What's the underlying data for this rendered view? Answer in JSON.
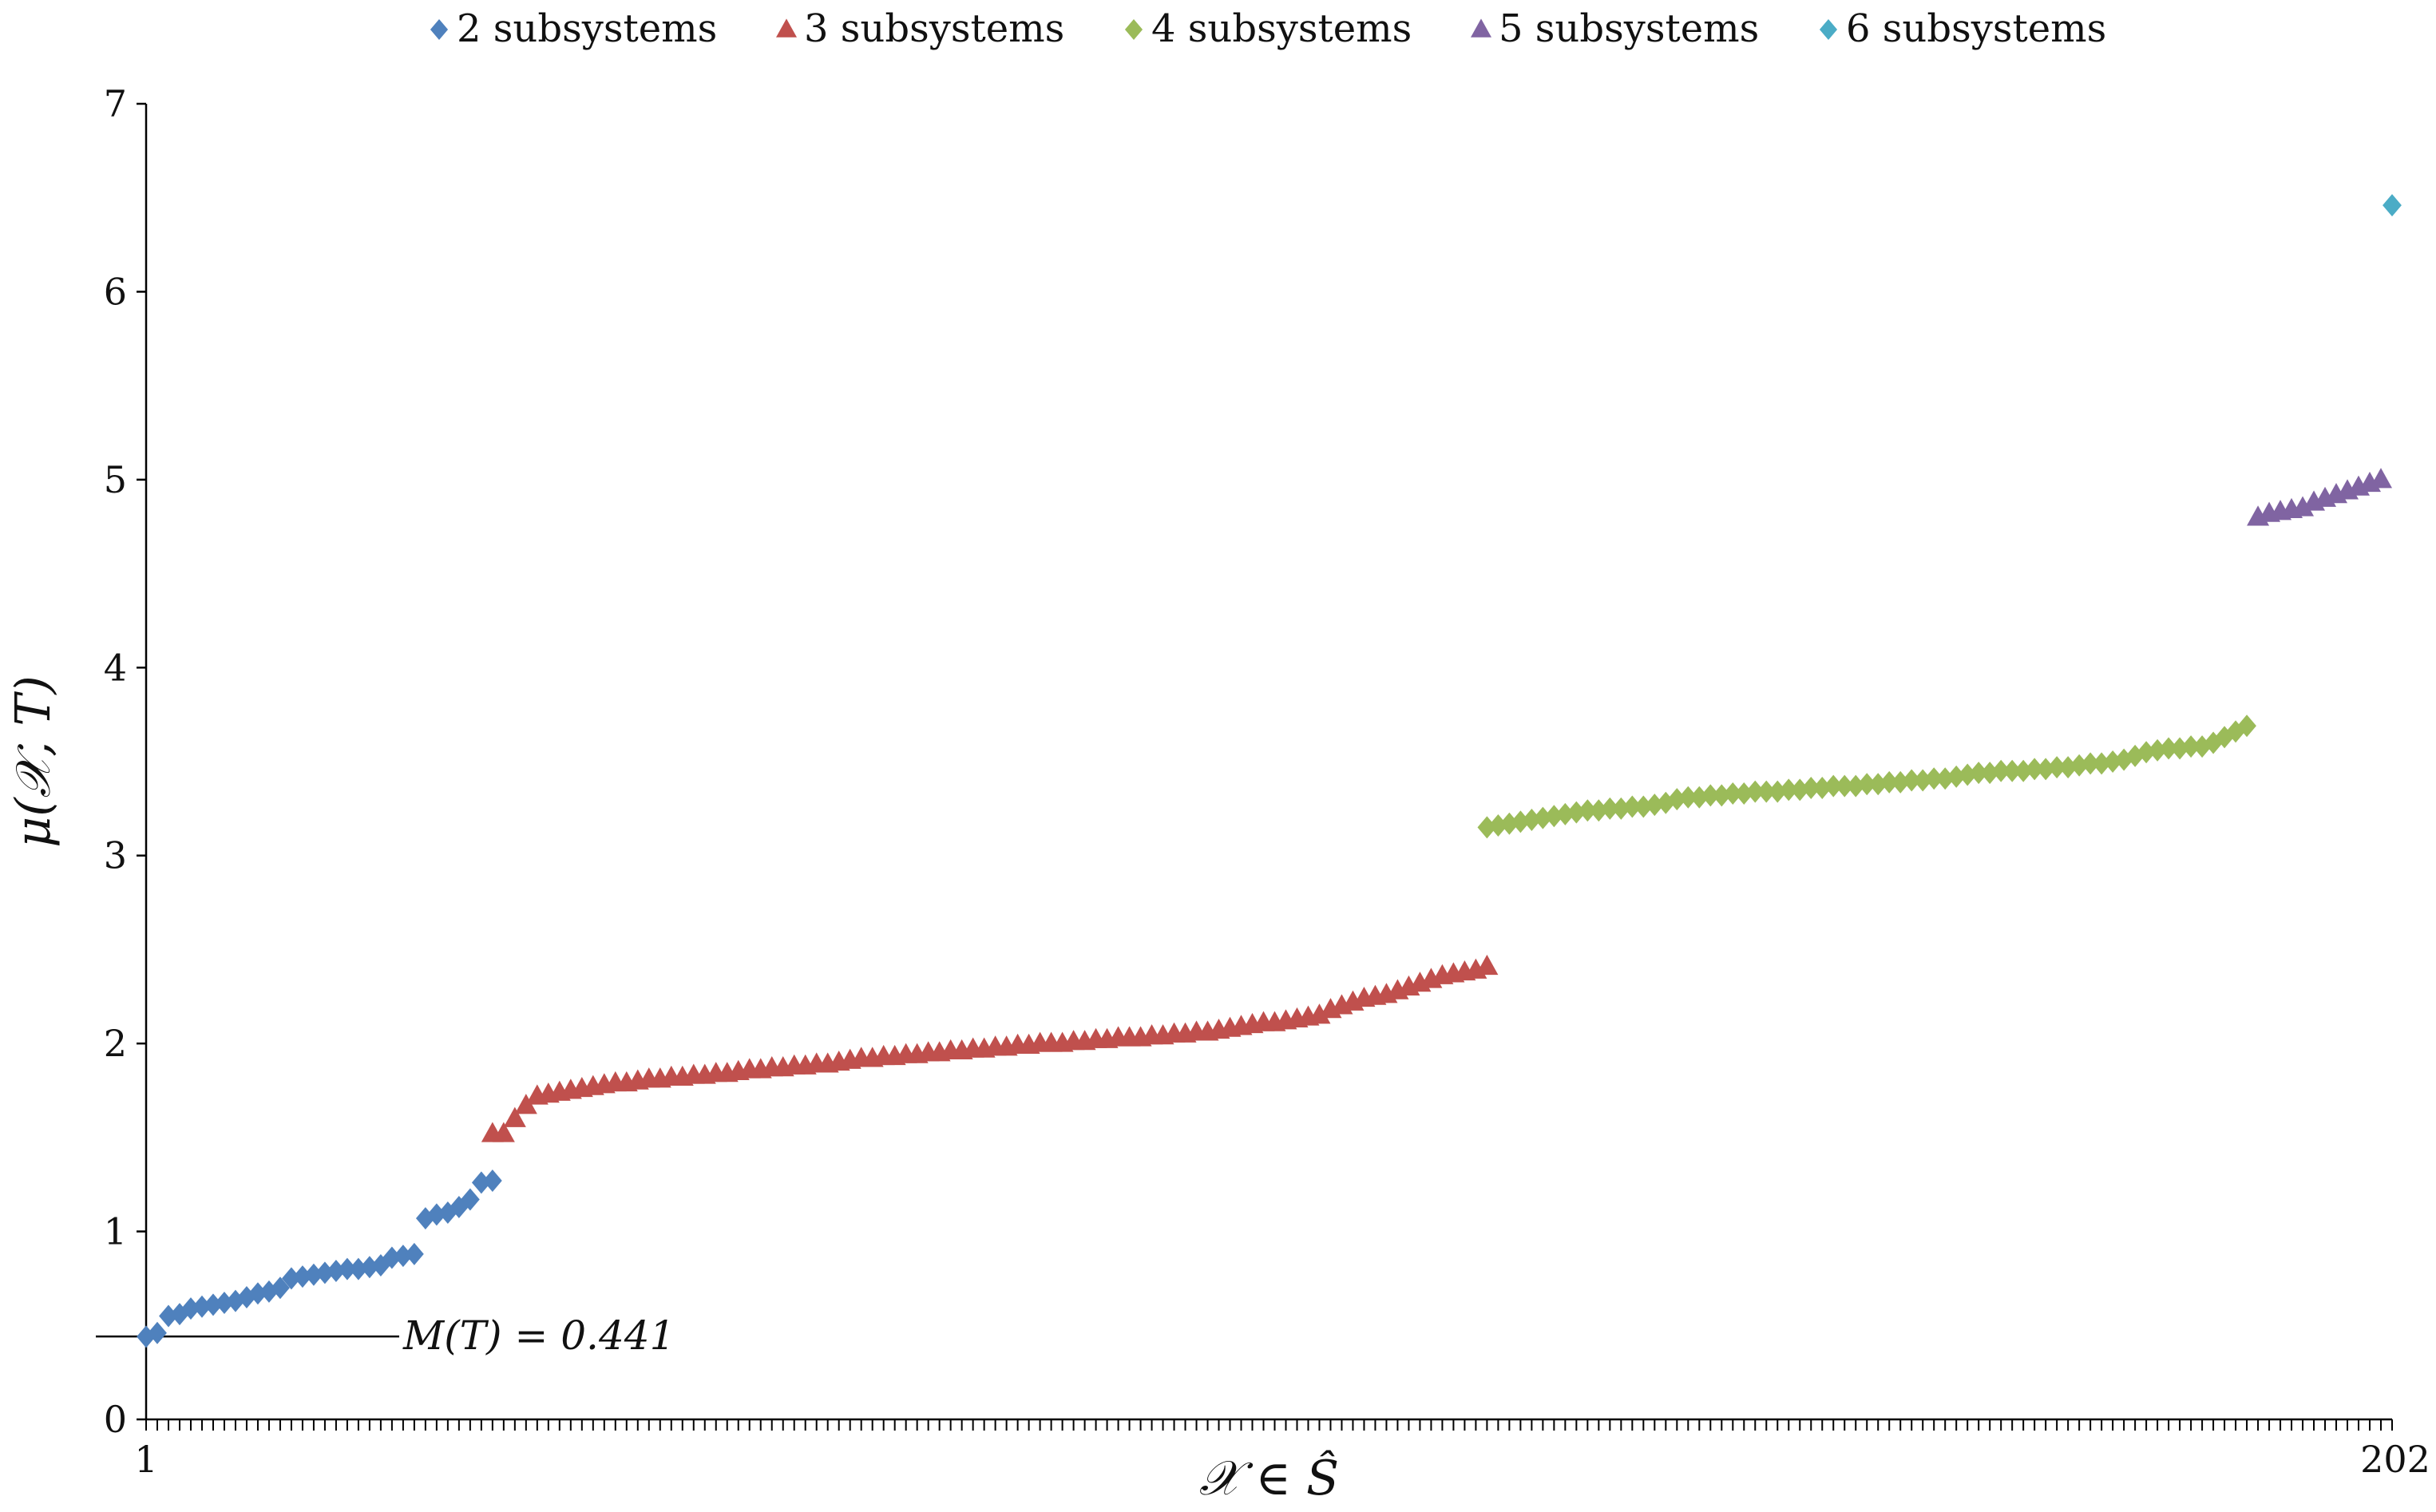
{
  "chart_data": {
    "type": "scatter",
    "xlabel": "𝒳 ∈ Ŝ",
    "ylabel": "μ(𝒳, T)",
    "xlim": [
      1,
      202
    ],
    "ylim": [
      0,
      7
    ],
    "x_tick_labels": [
      "1",
      "202"
    ],
    "y_ticks": [
      "0",
      "1",
      "2",
      "3",
      "4",
      "5",
      "6",
      "7"
    ],
    "grid": false,
    "legend_position": "top",
    "annotation": {
      "label": "M(T) = 0.441",
      "y": 0.441
    },
    "series": [
      {
        "name": "2 subsystems",
        "color": "#4f81bd",
        "marker": "diamond",
        "x": [
          1,
          2,
          3,
          4,
          5,
          6,
          7,
          8,
          9,
          10,
          11,
          12,
          13,
          14,
          15,
          16,
          17,
          18,
          19,
          20,
          21,
          22,
          23,
          24,
          25,
          26,
          27,
          28,
          29,
          30,
          31,
          32
        ],
        "y": [
          0.44,
          0.46,
          0.55,
          0.56,
          0.59,
          0.6,
          0.61,
          0.62,
          0.63,
          0.65,
          0.67,
          0.68,
          0.7,
          0.75,
          0.76,
          0.77,
          0.78,
          0.79,
          0.8,
          0.8,
          0.81,
          0.82,
          0.86,
          0.87,
          0.88,
          1.07,
          1.09,
          1.1,
          1.13,
          1.17,
          1.26,
          1.27
        ]
      },
      {
        "name": "3 subsystems",
        "color": "#c0504d",
        "marker": "triangle",
        "x": [
          32,
          33,
          34,
          35,
          36,
          37,
          38,
          39,
          40,
          41,
          42,
          43,
          44,
          45,
          46,
          47,
          48,
          49,
          50,
          51,
          52,
          53,
          54,
          55,
          56,
          57,
          58,
          59,
          60,
          61,
          62,
          63,
          64,
          65,
          66,
          67,
          68,
          69,
          70,
          71,
          72,
          73,
          74,
          75,
          76,
          77,
          78,
          79,
          80,
          81,
          82,
          83,
          84,
          85,
          86,
          87,
          88,
          89,
          90,
          91,
          92,
          93,
          94,
          95,
          96,
          97,
          98,
          99,
          100,
          101,
          102,
          103,
          104,
          105,
          106,
          107,
          108,
          109,
          110,
          111,
          112,
          113,
          114,
          115,
          116,
          117,
          118,
          119,
          120,
          121
        ],
        "y": [
          1.52,
          1.52,
          1.6,
          1.67,
          1.72,
          1.73,
          1.74,
          1.75,
          1.76,
          1.77,
          1.78,
          1.79,
          1.79,
          1.8,
          1.81,
          1.81,
          1.82,
          1.82,
          1.83,
          1.83,
          1.84,
          1.84,
          1.85,
          1.86,
          1.86,
          1.87,
          1.87,
          1.88,
          1.88,
          1.89,
          1.89,
          1.9,
          1.91,
          1.92,
          1.92,
          1.93,
          1.93,
          1.94,
          1.94,
          1.95,
          1.95,
          1.96,
          1.96,
          1.97,
          1.97,
          1.98,
          1.98,
          1.99,
          1.99,
          2.0,
          2.0,
          2.0,
          2.01,
          2.01,
          2.02,
          2.02,
          2.03,
          2.03,
          2.03,
          2.04,
          2.04,
          2.05,
          2.05,
          2.06,
          2.06,
          2.07,
          2.08,
          2.09,
          2.1,
          2.11,
          2.11,
          2.12,
          2.13,
          2.14,
          2.15,
          2.18,
          2.2,
          2.22,
          2.24,
          2.25,
          2.26,
          2.28,
          2.3,
          2.32,
          2.34,
          2.36,
          2.37,
          2.38,
          2.39,
          2.41
        ]
      },
      {
        "name": "4 subsystems",
        "color": "#9bbb59",
        "marker": "diamond",
        "x": [
          121,
          122,
          123,
          124,
          125,
          126,
          127,
          128,
          129,
          130,
          131,
          132,
          133,
          134,
          135,
          136,
          137,
          138,
          139,
          140,
          141,
          142,
          143,
          144,
          145,
          146,
          147,
          148,
          149,
          150,
          151,
          152,
          153,
          154,
          155,
          156,
          157,
          158,
          159,
          160,
          161,
          162,
          163,
          164,
          165,
          166,
          167,
          168,
          169,
          170,
          171,
          172,
          173,
          174,
          175,
          176,
          177,
          178,
          179,
          180,
          181,
          182,
          183,
          184,
          185,
          186,
          187,
          188,
          189
        ],
        "y": [
          3.15,
          3.16,
          3.17,
          3.18,
          3.19,
          3.2,
          3.21,
          3.22,
          3.23,
          3.24,
          3.24,
          3.25,
          3.25,
          3.26,
          3.26,
          3.27,
          3.28,
          3.3,
          3.31,
          3.31,
          3.32,
          3.32,
          3.33,
          3.33,
          3.34,
          3.34,
          3.34,
          3.35,
          3.35,
          3.36,
          3.36,
          3.37,
          3.37,
          3.37,
          3.38,
          3.38,
          3.39,
          3.39,
          3.4,
          3.4,
          3.41,
          3.41,
          3.42,
          3.43,
          3.44,
          3.44,
          3.45,
          3.45,
          3.45,
          3.46,
          3.46,
          3.47,
          3.47,
          3.48,
          3.49,
          3.49,
          3.5,
          3.51,
          3.53,
          3.55,
          3.56,
          3.57,
          3.57,
          3.58,
          3.58,
          3.6,
          3.63,
          3.66,
          3.69
        ]
      },
      {
        "name": "5 subsystems",
        "color": "#8064a2",
        "marker": "triangle",
        "x": [
          190,
          191,
          192,
          193,
          194,
          195,
          196,
          197,
          198,
          199,
          200,
          201
        ],
        "y": [
          4.8,
          4.82,
          4.83,
          4.84,
          4.85,
          4.88,
          4.9,
          4.92,
          4.94,
          4.96,
          4.98,
          5.0
        ]
      },
      {
        "name": "6 subsystems",
        "color": "#4bacc6",
        "marker": "diamond",
        "x": [
          202
        ],
        "y": [
          6.46
        ]
      }
    ]
  }
}
